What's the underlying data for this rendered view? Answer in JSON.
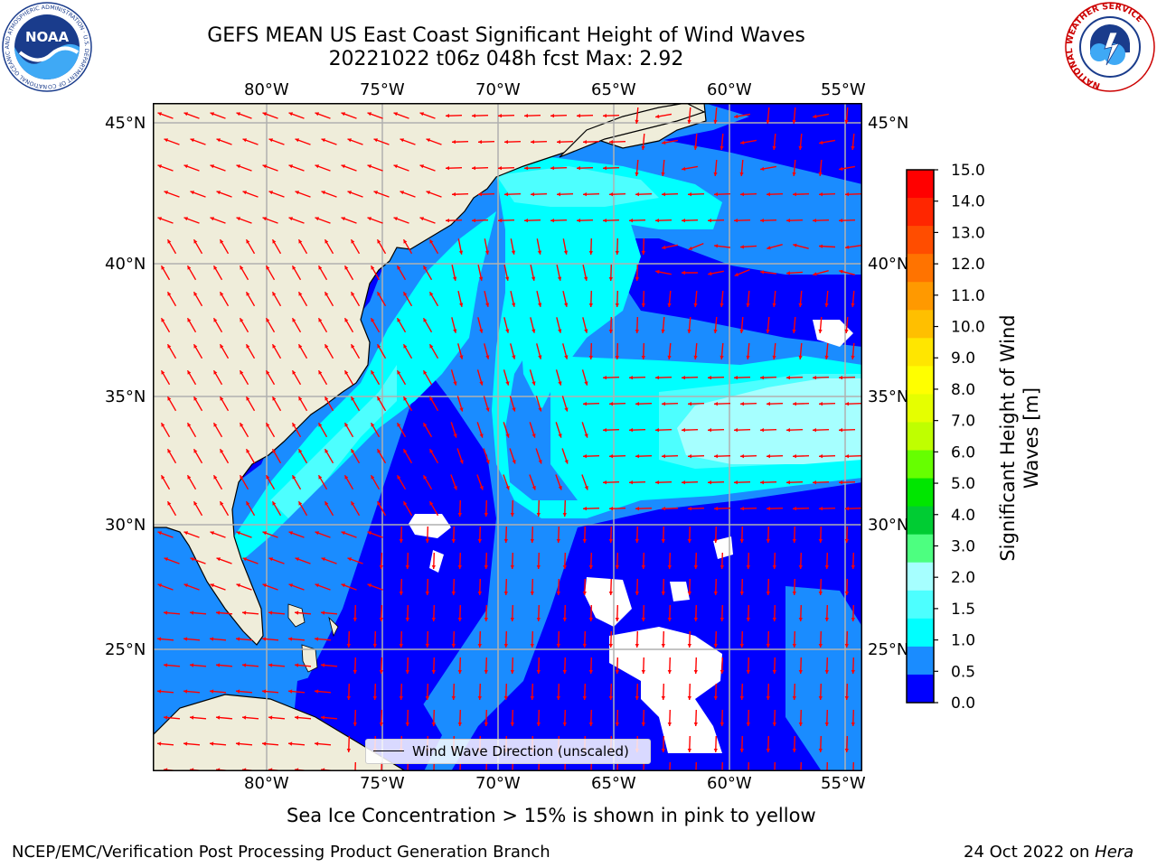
{
  "header": {
    "title_line1": "GEFS MEAN US East Coast Significant Height of Wind Waves",
    "title_line2": "20221022 t06z 048h fcst   Max: 2.92"
  },
  "logos": {
    "noaa_text": "NOAA",
    "noaa_ring": "NATIONAL OCEANIC AND ATMOSPHERIC ADMINISTRATION · U.S. DEPARTMENT OF COMMERCE",
    "nws_ring": "NATIONAL WEATHER SERVICE"
  },
  "map": {
    "lon_labels": [
      "80°W",
      "75°W",
      "70°W",
      "65°W",
      "60°W",
      "55°W"
    ],
    "lat_labels": [
      "45°N",
      "40°N",
      "35°N",
      "30°N",
      "25°N"
    ],
    "legend_label": "Wind Wave Direction (unscaled)",
    "colors": {
      "land": "#efedda",
      "band_0_0_5": "#0000ff",
      "band_0_5_1_0": "#1a8cff",
      "band_1_0_1_5": "#00ffff",
      "band_1_5_2_0": "#4dffff",
      "band_2_0_3_0": "#a6ffff",
      "arrows": "#ff0000",
      "grid": "#b0b0b0"
    }
  },
  "colorbar": {
    "label": "Significant Height of Wind Waves [m]",
    "ticks": [
      "15.0",
      "14.0",
      "13.0",
      "12.0",
      "11.0",
      "10.0",
      "9.0",
      "8.0",
      "7.0",
      "6.0",
      "5.0",
      "4.0",
      "3.0",
      "2.0",
      "1.5",
      "1.0",
      "0.5",
      "0.0"
    ],
    "colors_top_to_bottom": [
      "#ff0000",
      "#ff2600",
      "#ff4d00",
      "#ff7300",
      "#ff9900",
      "#ffbf00",
      "#ffe600",
      "#ffff00",
      "#e5ff00",
      "#bfff00",
      "#66ff00",
      "#00e600",
      "#00cc33",
      "#4dff80",
      "#a6ffff",
      "#4dffff",
      "#00ffff",
      "#1a8cff",
      "#0000ff"
    ]
  },
  "footer": {
    "sea_ice_note": "Sea Ice Concentration > 15% is shown in pink to yellow",
    "branch": "NCEP/EMC/Verification Post Processing Product Generation Branch",
    "date": "24 Oct 2022 on ",
    "machine": "Hera"
  }
}
